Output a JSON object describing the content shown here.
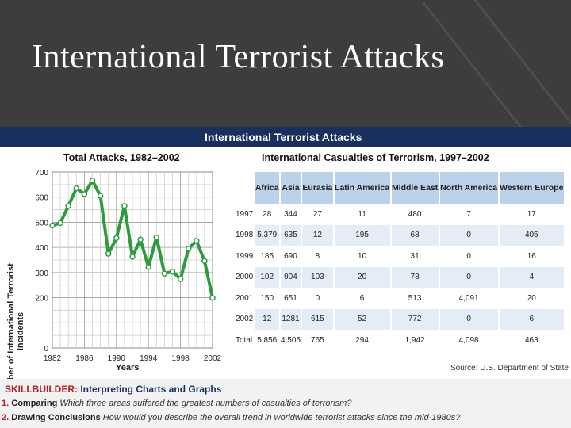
{
  "slide": {
    "title": "International Terrorist Attacks"
  },
  "banner": {
    "title": "International Terrorist Attacks"
  },
  "chart_data": [
    {
      "type": "line",
      "title": "Total Attacks, 1982–2002",
      "xlabel": "Years",
      "ylabel": "Number of International Terrorist Incidents",
      "x_ticks": [
        "1982",
        "1986",
        "1990",
        "1994",
        "1998",
        "2002"
      ],
      "y_ticks": [
        "0",
        "200",
        "300",
        "400",
        "500",
        "600",
        "700"
      ],
      "xlim": [
        1982,
        2002
      ],
      "ylim": [
        0,
        700
      ],
      "grid": true,
      "series_color": "#2e9b3e",
      "x": [
        1982,
        1983,
        1984,
        1985,
        1986,
        1987,
        1988,
        1989,
        1990,
        1991,
        1992,
        1993,
        1994,
        1995,
        1996,
        1997,
        1998,
        1999,
        2000,
        2001,
        2002
      ],
      "values": [
        487,
        497,
        565,
        635,
        612,
        666,
        605,
        375,
        437,
        565,
        363,
        431,
        322,
        440,
        296,
        304,
        274,
        395,
        426,
        346,
        199
      ]
    },
    {
      "type": "table",
      "title": "International Casualties of Terrorism, 1997–2002",
      "columns": [
        "Africa",
        "Asia",
        "Eurasia",
        "Latin America",
        "Middle East",
        "North America",
        "Western Europe"
      ],
      "rows": [
        {
          "label": "1997",
          "values": [
            "28",
            "344",
            "27",
            "11",
            "480",
            "7",
            "17"
          ]
        },
        {
          "label": "1998",
          "values": [
            "5,379",
            "635",
            "12",
            "195",
            "68",
            "0",
            "405"
          ]
        },
        {
          "label": "1999",
          "values": [
            "185",
            "690",
            "8",
            "10",
            "31",
            "0",
            "16"
          ]
        },
        {
          "label": "2000",
          "values": [
            "102",
            "904",
            "103",
            "20",
            "78",
            "0",
            "4"
          ]
        },
        {
          "label": "2001",
          "values": [
            "150",
            "651",
            "0",
            "6",
            "513",
            "4,091",
            "20"
          ]
        },
        {
          "label": "2002",
          "values": [
            "12",
            "1281",
            "615",
            "52",
            "772",
            "0",
            "6"
          ]
        },
        {
          "label": "Total",
          "values": [
            "5,856",
            "4,505",
            "765",
            "294",
            "1,942",
            "4,098",
            "463"
          ]
        }
      ],
      "source": "Source: U.S. Department of State"
    }
  ],
  "skillbuilder": {
    "label": "SKILLBUILDER:",
    "title": "Interpreting Charts and Graphs",
    "questions": [
      {
        "num": "1.",
        "label": "Comparing",
        "text": "Which three areas suffered the greatest numbers of casualties of terrorism?"
      },
      {
        "num": "2.",
        "label": "Drawing Conclusions",
        "text": "How would you describe the overall trend in worldwide terrorist attacks since the mid-1980s?"
      }
    ]
  }
}
